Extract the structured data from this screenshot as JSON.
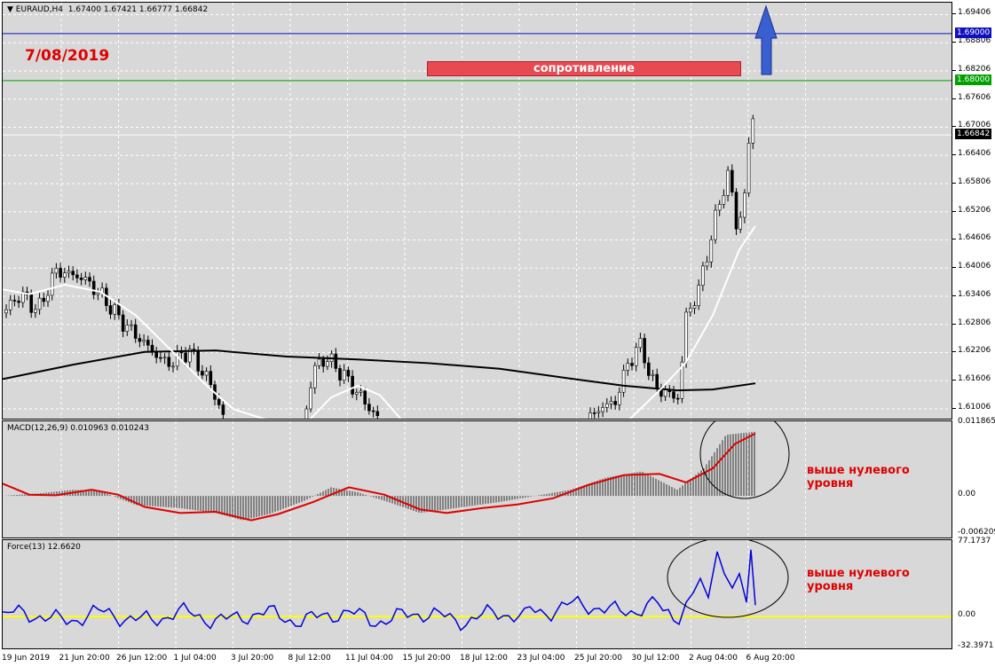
{
  "chart_data": {
    "type": "candlestick",
    "symbol_header": "EURAUD,H4",
    "ohlc_header": "1.67400 1.67421 1.66777 1.66842",
    "date_annotation": "7/08/2019",
    "resistance_label": "сопротивление",
    "main_axis": {
      "ylim": [
        1.6076,
        1.6966
      ],
      "ticks": [
        "1.69406",
        "1.68806",
        "1.68206",
        "1.67606",
        "1.67006",
        "1.66406",
        "1.65806",
        "1.65206",
        "1.64606",
        "1.64006",
        "1.63406",
        "1.62806",
        "1.62206",
        "1.61606",
        "1.61006"
      ]
    },
    "levels": [
      {
        "value": 1.69,
        "label": "1.69000",
        "color": "#1010c0"
      },
      {
        "value": 1.68,
        "label": "1.68000",
        "color": "#00a000"
      },
      {
        "value": 1.66842,
        "label": "1.66842",
        "color": "#ffffff"
      }
    ],
    "macd": {
      "header": "MACD(12,26,9) 0.010963 0.010243",
      "ticks": [
        "0.011865",
        "0.00",
        "-0.006209"
      ],
      "ylim": [
        -0.0071,
        0.0122
      ]
    },
    "force": {
      "header": "Force(13) 12.6620",
      "ticks": [
        "77.1737",
        "0.00",
        "-32.3971"
      ],
      "ylim": [
        -35,
        80
      ]
    },
    "x_labels": [
      "19 Jun 2019",
      "21 Jun 20:00",
      "26 Jun 12:00",
      "1 Jul 04:00",
      "3 Jul 20:00",
      "8 Jul 12:00",
      "11 Jul 04:00",
      "15 Jul 20:00",
      "18 Jul 12:00",
      "23 Jul 04:00",
      "25 Jul 20:00",
      "30 Jul 12:00",
      "2 Aug 04:00",
      "6 Aug 20:00"
    ],
    "note_macd": [
      "выше нулевого",
      "уровня"
    ],
    "note_force": [
      "выше нулевого",
      "уровня"
    ],
    "colors": {
      "bg": "#d8d8d8",
      "signal": "#e00000",
      "force": "#0000e0",
      "zero": "#ffff00",
      "ma_slow": "#000000",
      "ma_fast": "#ffffff",
      "annotation": "#e00000",
      "arrow": "#3a5fd0"
    }
  }
}
